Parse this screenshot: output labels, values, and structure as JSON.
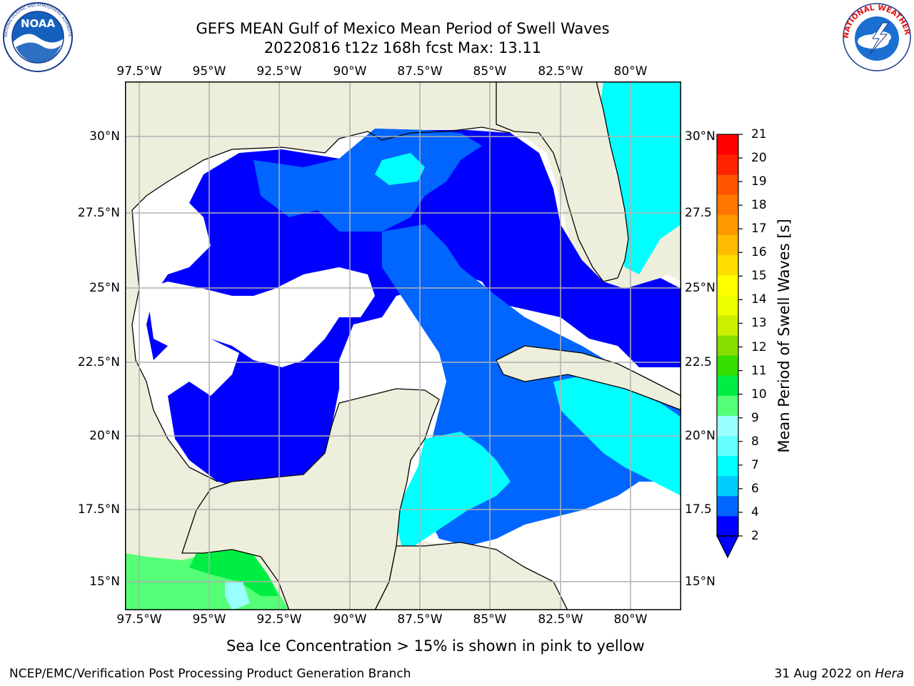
{
  "header": {
    "title": "GEFS MEAN Gulf of Mexico Mean Period of Swell Waves",
    "subtitle": "20220816 t12z 168h fcst   Max: 13.11"
  },
  "logos": {
    "left": {
      "name": "noaa-logo",
      "text": "NOAA",
      "ring_text": "NATIONAL OCEANIC AND ATMOSPHERIC ADMINISTRATION · U.S. DEPARTMENT OF COMMERCE"
    },
    "right": {
      "name": "nws-logo",
      "ring_text": "NATIONAL WEATHER SERVICE"
    }
  },
  "map": {
    "lon_ticks": [
      "97.5°W",
      "95°W",
      "92.5°W",
      "90°W",
      "87.5°W",
      "85°W",
      "82.5°W",
      "80°W"
    ],
    "lat_ticks_left": [
      "30°N",
      "27.5°N",
      "25°N",
      "22.5°N",
      "20°N",
      "17.5°N",
      "15°N"
    ],
    "lat_ticks_right": [
      "30°N",
      "27.5",
      "25°N",
      "22.5",
      "20°N",
      "17.5",
      "15°N"
    ],
    "lon_range": [
      -98.0,
      -78.2
    ],
    "lat_range": [
      14.0,
      31.9
    ],
    "land_color": "#eeeedc",
    "grid_color": "#b0b0b0"
  },
  "colorbar": {
    "label": "Mean Period of Swell Waves [s]",
    "ticks": [
      "21",
      "20",
      "19",
      "18",
      "17",
      "16",
      "15",
      "14",
      "13",
      "12",
      "11",
      "10",
      "9",
      "8",
      "7",
      "6",
      "4",
      "2"
    ],
    "colors": [
      "#0000ff",
      "#0066ff",
      "#00ccff",
      "#00ffff",
      "#66ffff",
      "#99ffff",
      "#55ff77",
      "#00ee44",
      "#33dd00",
      "#88dd00",
      "#ccee00",
      "#eeff00",
      "#ffff00",
      "#ffdd00",
      "#ffbb00",
      "#ff9900",
      "#ff7700",
      "#ff5500",
      "#ff2200",
      "#ff0000"
    ]
  },
  "note": "Sea Ice Concentration > 15% is shown in pink to yellow",
  "footer": {
    "left": "NCEP/EMC/Verification Post Processing Product Generation Branch",
    "right_prefix": "31 Aug 2022 on ",
    "right_host": "Hera"
  }
}
